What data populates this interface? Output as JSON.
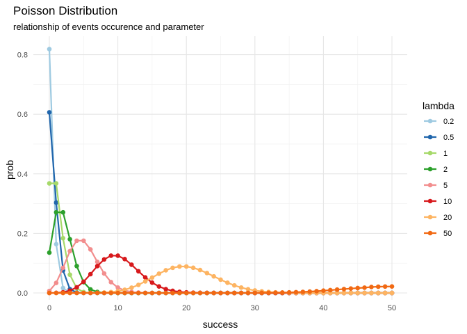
{
  "chart_data": {
    "type": "line",
    "title": "Poisson Distribution",
    "subtitle": "relationship of events occurence and parameter",
    "xlabel": "success",
    "ylabel": "prob",
    "xlim": [
      0,
      50
    ],
    "ylim": [
      0,
      0.82
    ],
    "x_ticks": [
      0,
      10,
      20,
      30,
      40,
      50
    ],
    "y_ticks": [
      0.0,
      0.2,
      0.4,
      0.6,
      0.8
    ],
    "y_tick_labels": [
      "0.0",
      "0.2",
      "0.4",
      "0.6",
      "0.8"
    ],
    "grid": true,
    "legend_title": "lambda",
    "legend_position": "right",
    "x": [
      0,
      1,
      2,
      3,
      4,
      5,
      6,
      7,
      8,
      9,
      10,
      11,
      12,
      13,
      14,
      15,
      16,
      17,
      18,
      19,
      20,
      21,
      22,
      23,
      24,
      25,
      26,
      27,
      28,
      29,
      30,
      31,
      32,
      33,
      34,
      35,
      36,
      37,
      38,
      39,
      40,
      41,
      42,
      43,
      44,
      45,
      46,
      47,
      48,
      49,
      50
    ],
    "series": [
      {
        "name": "0.2",
        "color": "#9ecae1",
        "values": [
          0.8187,
          0.1637,
          0.0164,
          0.0011,
          0.0001,
          0,
          0,
          0,
          0,
          0,
          0,
          0,
          0,
          0,
          0,
          0,
          0,
          0,
          0,
          0,
          0,
          0,
          0,
          0,
          0,
          0,
          0,
          0,
          0,
          0,
          0,
          0,
          0,
          0,
          0,
          0,
          0,
          0,
          0,
          0,
          0,
          0,
          0,
          0,
          0,
          0,
          0,
          0,
          0,
          0,
          0
        ]
      },
      {
        "name": "0.5",
        "color": "#2166ac",
        "values": [
          0.6065,
          0.3033,
          0.0758,
          0.0126,
          0.0016,
          0.0002,
          0,
          0,
          0,
          0,
          0,
          0,
          0,
          0,
          0,
          0,
          0,
          0,
          0,
          0,
          0,
          0,
          0,
          0,
          0,
          0,
          0,
          0,
          0,
          0,
          0,
          0,
          0,
          0,
          0,
          0,
          0,
          0,
          0,
          0,
          0,
          0,
          0,
          0,
          0,
          0,
          0,
          0,
          0,
          0,
          0
        ]
      },
      {
        "name": "1",
        "color": "#a6d96a",
        "values": [
          0.3679,
          0.3679,
          0.1839,
          0.0613,
          0.0153,
          0.0031,
          0.0005,
          0.0001,
          0,
          0,
          0,
          0,
          0,
          0,
          0,
          0,
          0,
          0,
          0,
          0,
          0,
          0,
          0,
          0,
          0,
          0,
          0,
          0,
          0,
          0,
          0,
          0,
          0,
          0,
          0,
          0,
          0,
          0,
          0,
          0,
          0,
          0,
          0,
          0,
          0,
          0,
          0,
          0,
          0,
          0,
          0
        ]
      },
      {
        "name": "2",
        "color": "#2ca02c",
        "values": [
          0.1353,
          0.2707,
          0.2707,
          0.1804,
          0.0902,
          0.0361,
          0.012,
          0.0034,
          0.0009,
          0.0002,
          0,
          0,
          0,
          0,
          0,
          0,
          0,
          0,
          0,
          0,
          0,
          0,
          0,
          0,
          0,
          0,
          0,
          0,
          0,
          0,
          0,
          0,
          0,
          0,
          0,
          0,
          0,
          0,
          0,
          0,
          0,
          0,
          0,
          0,
          0,
          0,
          0,
          0,
          0,
          0,
          0
        ]
      },
      {
        "name": "5",
        "color": "#f28e8e",
        "values": [
          0.0067,
          0.0337,
          0.0842,
          0.1404,
          0.1755,
          0.1755,
          0.1462,
          0.1044,
          0.0653,
          0.0363,
          0.0181,
          0.0082,
          0.0034,
          0.0013,
          0.0005,
          0.0002,
          0,
          0,
          0,
          0,
          0,
          0,
          0,
          0,
          0,
          0,
          0,
          0,
          0,
          0,
          0,
          0,
          0,
          0,
          0,
          0,
          0,
          0,
          0,
          0,
          0,
          0,
          0,
          0,
          0,
          0,
          0,
          0,
          0,
          0,
          0
        ]
      },
      {
        "name": "10",
        "color": "#d7191c",
        "values": [
          0,
          0.0005,
          0.0023,
          0.0076,
          0.0189,
          0.0378,
          0.0631,
          0.0901,
          0.1126,
          0.1251,
          0.1251,
          0.1137,
          0.0948,
          0.0729,
          0.0521,
          0.0347,
          0.0217,
          0.0128,
          0.0071,
          0.0037,
          0.0019,
          0.0009,
          0.0004,
          0.0002,
          0.0001,
          0,
          0,
          0,
          0,
          0,
          0,
          0,
          0,
          0,
          0,
          0,
          0,
          0,
          0,
          0,
          0,
          0,
          0,
          0,
          0,
          0,
          0,
          0,
          0,
          0,
          0
        ]
      },
      {
        "name": "20",
        "color": "#fdb462",
        "values": [
          0,
          0,
          0,
          0,
          0,
          0.0001,
          0.0002,
          0.0005,
          0.0013,
          0.0029,
          0.0058,
          0.0106,
          0.0176,
          0.0271,
          0.0387,
          0.0516,
          0.0646,
          0.076,
          0.0844,
          0.0888,
          0.0888,
          0.0846,
          0.0769,
          0.0669,
          0.0557,
          0.0446,
          0.0343,
          0.0254,
          0.0181,
          0.0125,
          0.0083,
          0.0054,
          0.0034,
          0.002,
          0.0012,
          0.0007,
          0.0004,
          0.0002,
          0.0001,
          0.0001,
          0,
          0,
          0,
          0,
          0,
          0,
          0,
          0,
          0,
          0,
          0
        ]
      },
      {
        "name": "50",
        "color": "#f16913",
        "values": [
          0,
          0,
          0,
          0,
          0,
          0,
          0,
          0,
          0,
          0,
          0,
          0,
          0,
          0,
          0,
          0,
          0,
          0,
          0,
          0,
          0,
          0,
          0,
          0,
          0,
          0,
          0,
          0,
          0.0001,
          0.0001,
          0.0002,
          0.0004,
          0.0006,
          0.0009,
          0.0013,
          0.0019,
          0.0026,
          0.0035,
          0.0046,
          0.0059,
          0.0077,
          0.0094,
          0.0112,
          0.013,
          0.0148,
          0.0164,
          0.0178,
          0.02,
          0.021,
          0.0214,
          0.0218
        ]
      }
    ]
  }
}
